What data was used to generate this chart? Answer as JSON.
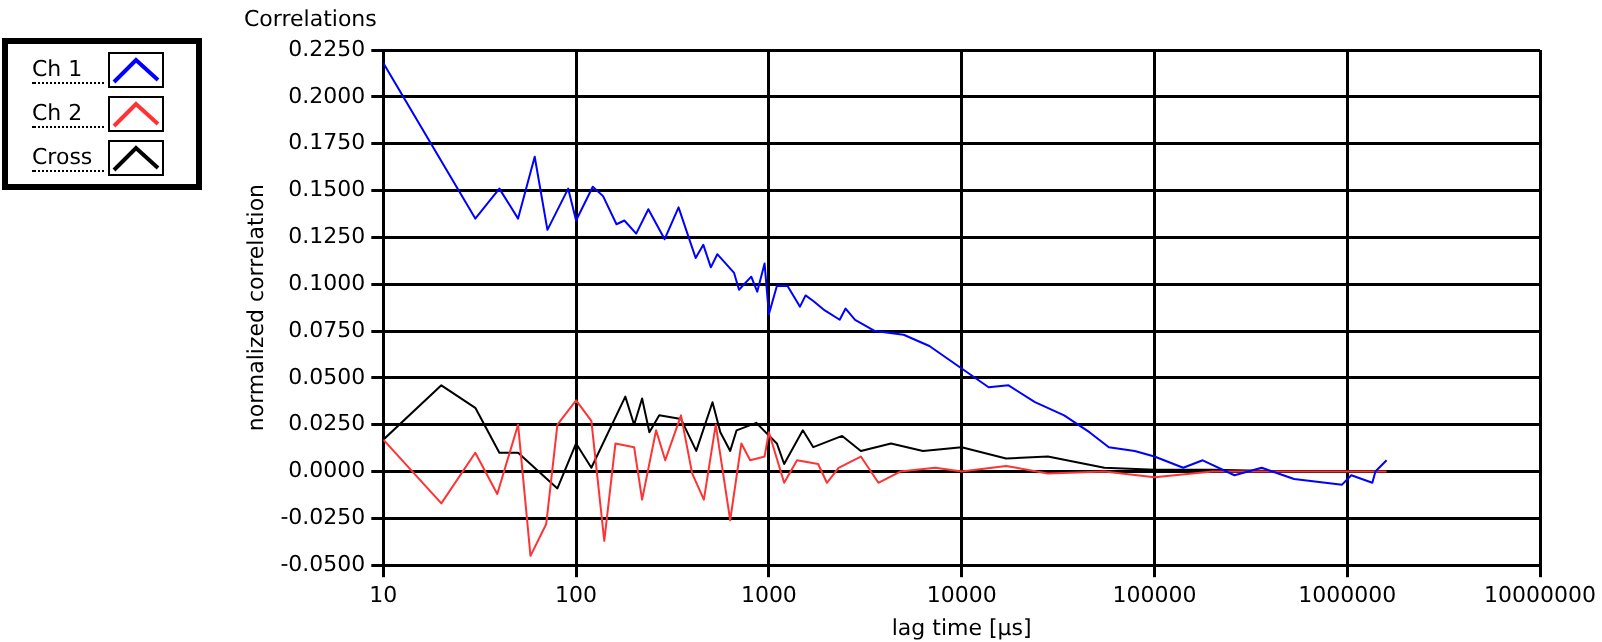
{
  "chart_data": {
    "type": "line",
    "title": "Correlations",
    "xlabel": "lag time [µs]",
    "ylabel": "normalized correlation",
    "log": "x",
    "grid": true,
    "legend": "top left",
    "marker": "none",
    "line_style": "solid",
    "xlim": [
      10,
      10000000
    ],
    "xticks": [
      10,
      100,
      1000,
      10000,
      100000,
      1000000,
      10000000
    ],
    "ylim": [
      -0.05,
      0.225
    ],
    "yticks": [
      {
        "value": -0.05,
        "label": "-0.0500"
      },
      {
        "value": -0.025,
        "label": "-0.0250"
      },
      {
        "value": 0,
        "label": "0.0000"
      },
      {
        "value": 0.025,
        "label": "0.0250"
      },
      {
        "value": 0.05,
        "label": "0.0500"
      },
      {
        "value": 0.075,
        "label": "0.0750"
      },
      {
        "value": 0.1,
        "label": "0.1000"
      },
      {
        "value": 0.125,
        "label": "0.1250"
      },
      {
        "value": 0.15,
        "label": "0.1500"
      },
      {
        "value": 0.175,
        "label": "0.1750"
      },
      {
        "value": 0.2,
        "label": "0.2000"
      },
      {
        "value": 0.225,
        "label": "0.2250"
      }
    ],
    "series": [
      {
        "name": "Ch 1",
        "color": "#0000ff",
        "x": [
          10,
          30,
          40,
          50,
          61,
          71,
          91,
          100,
          122,
          138,
          162,
          178,
          205,
          237,
          288,
          340,
          417,
          457,
          500,
          540,
          660,
          700,
          810,
          870,
          950,
          1000,
          1100,
          1250,
          1450,
          1550,
          1700,
          1950,
          2330,
          2500,
          2800,
          3550,
          5000,
          6800,
          10000,
          13800,
          17500,
          24000,
          34000,
          46000,
          58000,
          79000,
          100000,
          141000,
          178000,
          260000,
          360000,
          530000,
          940000,
          1050000,
          1350000,
          1400000,
          1600000
        ],
        "values": [
          0.218,
          0.135,
          0.151,
          0.135,
          0.168,
          0.129,
          0.151,
          0.134,
          0.152,
          0.147,
          0.132,
          0.134,
          0.127,
          0.14,
          0.124,
          0.141,
          0.114,
          0.121,
          0.109,
          0.116,
          0.106,
          0.097,
          0.104,
          0.096,
          0.111,
          0.084,
          0.099,
          0.099,
          0.088,
          0.094,
          0.091,
          0.086,
          0.081,
          0.087,
          0.081,
          0.075,
          0.073,
          0.067,
          0.055,
          0.045,
          0.046,
          0.037,
          0.03,
          0.021,
          0.013,
          0.011,
          0.008,
          0.002,
          0.006,
          -0.002,
          0.002,
          -0.004,
          -0.007,
          -0.002,
          -0.006,
          0.0,
          0.006
        ]
      },
      {
        "name": "Ch 2",
        "color": "#ff3333",
        "x": [
          10,
          20,
          30,
          39,
          50,
          58,
          70,
          80,
          100,
          120,
          140,
          160,
          200,
          220,
          260,
          290,
          350,
          400,
          460,
          530,
          630,
          720,
          800,
          950,
          1000,
          1200,
          1400,
          1800,
          2000,
          2300,
          3000,
          3700,
          4800,
          7300,
          10000,
          17000,
          28000,
          55000,
          100000,
          200000,
          500000,
          1000000,
          1600000
        ],
        "values": [
          0.017,
          -0.017,
          0.01,
          -0.012,
          0.025,
          -0.045,
          -0.028,
          0.025,
          0.038,
          0.027,
          -0.037,
          0.015,
          0.013,
          -0.015,
          0.022,
          0.006,
          0.03,
          -0.001,
          -0.015,
          0.025,
          -0.026,
          0.015,
          0.006,
          0.008,
          0.021,
          -0.006,
          0.006,
          0.004,
          -0.006,
          0.002,
          0.008,
          -0.006,
          0.0,
          0.002,
          0.0,
          0.003,
          -0.001,
          0.0,
          -0.003,
          0.0,
          0.0,
          0.0,
          0.0
        ]
      },
      {
        "name": "Cross",
        "color": "#000000",
        "x": [
          10,
          20,
          30,
          40,
          50,
          80,
          100,
          120,
          180,
          200,
          220,
          240,
          270,
          350,
          420,
          510,
          560,
          630,
          680,
          860,
          1100,
          1200,
          1500,
          1700,
          2400,
          3000,
          4300,
          6300,
          10000,
          17000,
          28000,
          55000,
          100000,
          200000,
          500000,
          1000000,
          1600000
        ],
        "values": [
          0.017,
          0.046,
          0.034,
          0.01,
          0.01,
          -0.009,
          0.015,
          0.002,
          0.04,
          0.025,
          0.039,
          0.021,
          0.03,
          0.028,
          0.011,
          0.037,
          0.021,
          0.011,
          0.022,
          0.026,
          0.015,
          0.004,
          0.022,
          0.013,
          0.019,
          0.011,
          0.015,
          0.011,
          0.013,
          0.007,
          0.008,
          0.002,
          0.001,
          0.001,
          0.0,
          0.0,
          0.0
        ]
      }
    ]
  }
}
